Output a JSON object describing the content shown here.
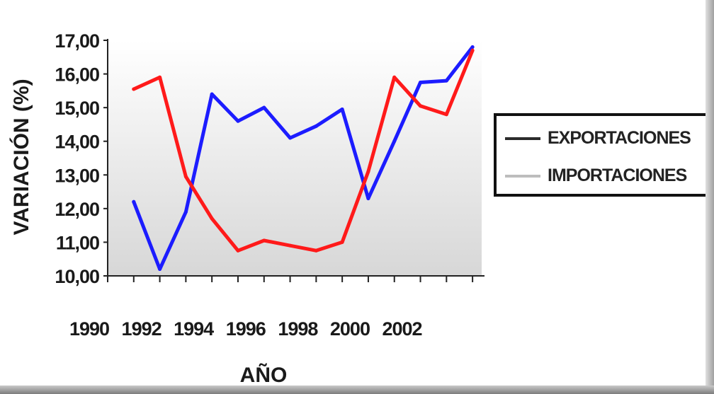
{
  "chart_data": {
    "type": "line",
    "xlabel": "AÑO",
    "ylabel": "VARIACIÓN (%)",
    "x": [
      1991,
      1992,
      1993,
      1994,
      1995,
      1996,
      1997,
      1998,
      1999,
      2000,
      2001,
      2002,
      2003,
      2004
    ],
    "xticks": [
      1990,
      1992,
      1994,
      1996,
      1998,
      2000,
      2002
    ],
    "ylim": [
      10,
      17
    ],
    "yticks": [
      "10,00",
      "11,00",
      "12,00",
      "13,00",
      "14,00",
      "15,00",
      "16,00",
      "17,00"
    ],
    "series": [
      {
        "name": "EXPORTACIONES",
        "color": "#1c1cff",
        "values": [
          12.2,
          10.2,
          11.9,
          15.4,
          14.6,
          15.0,
          14.1,
          14.45,
          14.95,
          12.3,
          14.0,
          15.75,
          15.8,
          16.8
        ]
      },
      {
        "name": "IMPORTACIONES",
        "color": "#ff1a1a",
        "values": [
          15.55,
          15.9,
          12.95,
          11.7,
          10.75,
          11.05,
          10.9,
          10.75,
          11.0,
          13.1,
          15.9,
          15.05,
          14.8,
          16.7
        ]
      }
    ],
    "legend": {
      "position": "right",
      "entries": [
        {
          "label": "EXPORTACIONES",
          "color": "#2b2b2b"
        },
        {
          "label": "IMPORTACIONES",
          "color": "#bdbdbd"
        }
      ]
    },
    "grid": false,
    "background": "gradient-gray"
  }
}
